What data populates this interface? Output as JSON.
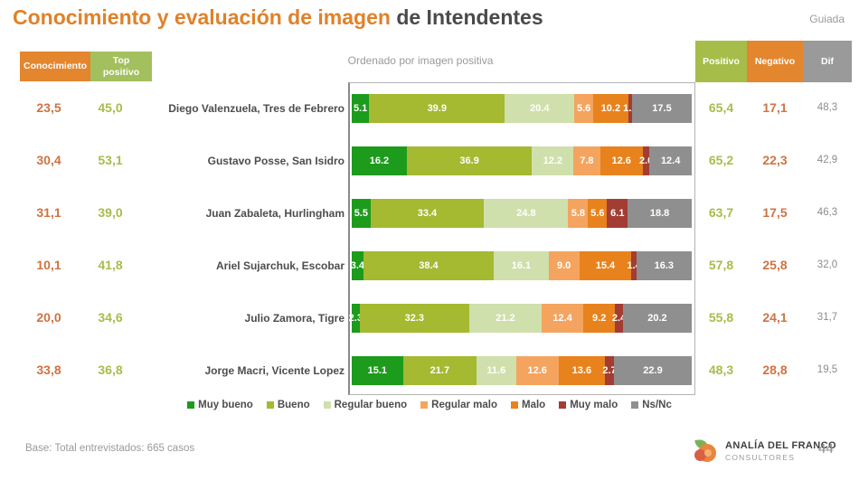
{
  "header": {
    "title_orange": "Conocimiento y evaluación de imagen",
    "title_dark": "de Intendentes",
    "mode_label": "Guiada"
  },
  "table": {
    "col_conocimiento": "Conocimiento",
    "col_top_positivo": "Top positivo",
    "col_positivo": "Positivo",
    "col_negativo": "Negativo",
    "col_dif": "Dif"
  },
  "chart_data": {
    "type": "bar",
    "orientation": "horizontal-stacked",
    "title": "Conocimiento y evaluación de imagen de Intendentes",
    "subtitle": "Ordenado por imagen positiva",
    "categories": [
      "Muy bueno",
      "Bueno",
      "Regular bueno",
      "Regular malo",
      "Malo",
      "Muy malo",
      "Ns/Nc"
    ],
    "segment_colors": [
      "#1d9b1d",
      "#a5b931",
      "#cfe0ac",
      "#f4a45f",
      "#e8821c",
      "#a33c32",
      "#8f8f8f"
    ],
    "xlim": [
      0,
      100
    ],
    "legend_position": "bottom",
    "rows": [
      {
        "name": "Diego Valenzuela, Tres de Febrero",
        "conocimiento": "23,5",
        "top_positivo": "45,0",
        "segments": [
          5.1,
          39.9,
          20.4,
          5.6,
          10.2,
          1.2,
          17.5
        ],
        "positivo": "65,4",
        "negativo": "17,1",
        "dif": "48,3"
      },
      {
        "name": "Gustavo Posse, San Isidro",
        "conocimiento": "30,4",
        "top_positivo": "53,1",
        "segments": [
          16.2,
          36.9,
          12.2,
          7.8,
          12.6,
          2.0,
          12.4
        ],
        "positivo": "65,2",
        "negativo": "22,3",
        "dif": "42,9"
      },
      {
        "name": "Juan Zabaleta, Hurlingham",
        "conocimiento": "31,1",
        "top_positivo": "39,0",
        "segments": [
          5.5,
          33.4,
          24.8,
          5.8,
          5.6,
          6.1,
          18.8
        ],
        "positivo": "63,7",
        "negativo": "17,5",
        "dif": "46,3"
      },
      {
        "name": "Ariel Sujarchuk, Escobar",
        "conocimiento": "10,1",
        "top_positivo": "41,8",
        "segments": [
          3.4,
          38.4,
          16.1,
          9.0,
          15.4,
          1.4,
          16.3
        ],
        "positivo": "57,8",
        "negativo": "25,8",
        "dif": "32,0"
      },
      {
        "name": "Julio Zamora, Tigre",
        "conocimiento": "20,0",
        "top_positivo": "34,6",
        "segments": [
          2.3,
          32.3,
          21.2,
          12.4,
          9.2,
          2.4,
          20.2
        ],
        "positivo": "55,8",
        "negativo": "24,1",
        "dif": "31,7"
      },
      {
        "name": "Jorge Macri,  Vicente Lopez",
        "conocimiento": "33,8",
        "top_positivo": "36,8",
        "segments": [
          15.1,
          21.7,
          11.6,
          12.6,
          13.6,
          2.7,
          22.9
        ],
        "positivo": "48,3",
        "negativo": "28,8",
        "dif": "19,5"
      }
    ]
  },
  "footer": {
    "base_note": "Base: Total entrevistados: 665 casos",
    "brand_name": "ANALÍA DEL FRANCO",
    "brand_sub": "CONSULTORES",
    "page_number": "44"
  }
}
